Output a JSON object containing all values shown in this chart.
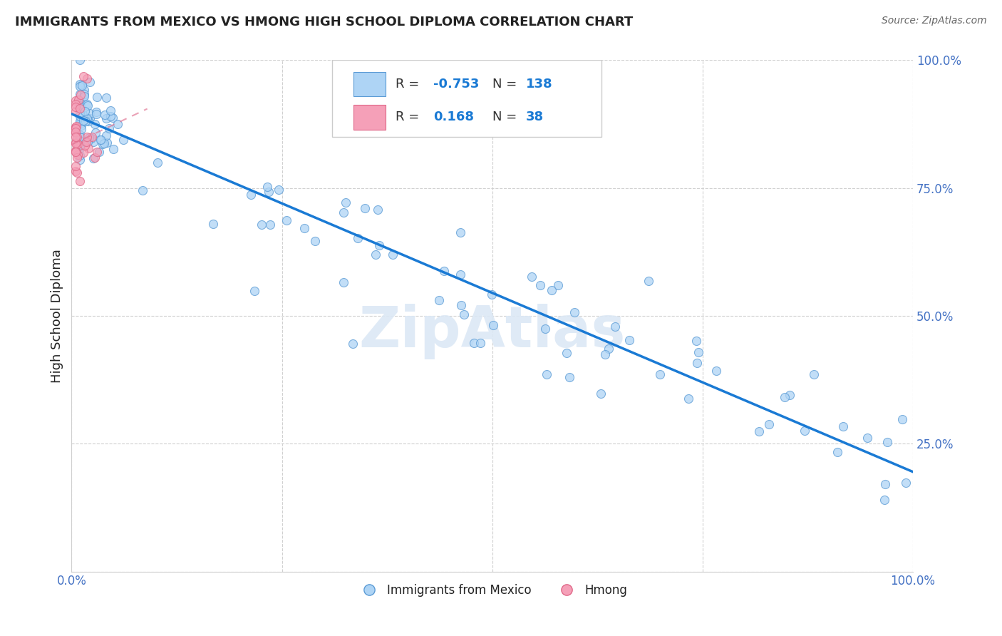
{
  "title": "IMMIGRANTS FROM MEXICO VS HMONG HIGH SCHOOL DIPLOMA CORRELATION CHART",
  "source": "Source: ZipAtlas.com",
  "ylabel": "High School Diploma",
  "xlim": [
    0,
    1
  ],
  "ylim": [
    0,
    1
  ],
  "legend_labels": [
    "Immigrants from Mexico",
    "Hmong"
  ],
  "mexico_color": "#aed4f5",
  "hmong_color": "#f5a0b8",
  "mexico_edge_color": "#5b9bd5",
  "hmong_edge_color": "#e06888",
  "mexico_line_color": "#1a7ad4",
  "hmong_line_color": "#e07090",
  "R_mexico": -0.753,
  "N_mexico": 138,
  "R_hmong": 0.168,
  "N_hmong": 38,
  "mexico_trend_x": [
    0.0,
    1.0
  ],
  "mexico_trend_y": [
    0.895,
    0.195
  ],
  "hmong_trend_x": [
    0.0,
    0.09
  ],
  "hmong_trend_y": [
    0.835,
    0.905
  ],
  "watermark": "ZipAtlas",
  "background_color": "#ffffff",
  "grid_color": "#d0d0d0",
  "legend_box_color": "#f8f8f8",
  "legend_text_dark": "#333333",
  "legend_text_blue": "#1a7ad4",
  "tick_color": "#4472c4",
  "title_color": "#222222",
  "source_color": "#666666",
  "watermark_color": "#dce8f5"
}
